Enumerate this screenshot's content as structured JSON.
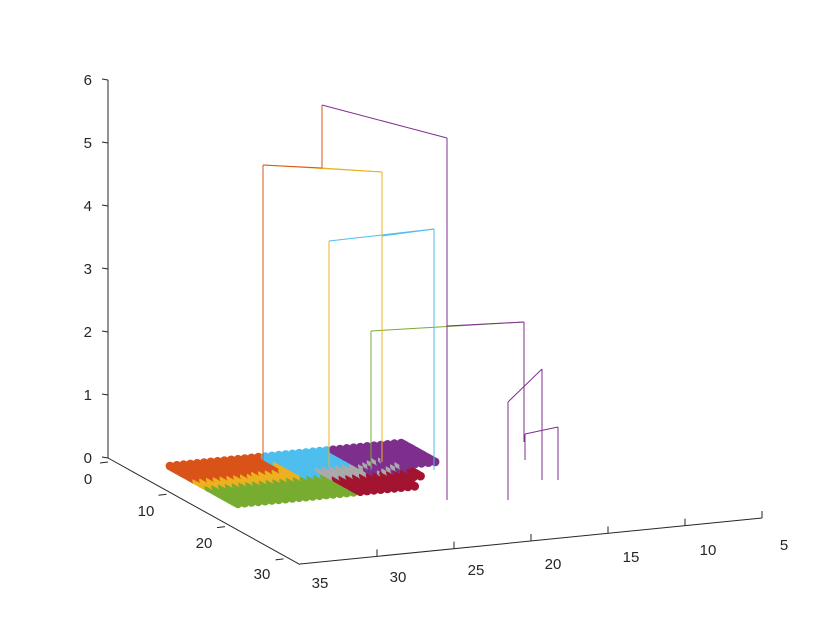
{
  "chart_data": {
    "type": "scatter",
    "title": "",
    "xlabel": "",
    "ylabel": "",
    "zlabel": "",
    "grid": false,
    "x_ticks": [
      "0",
      "10",
      "20",
      "30"
    ],
    "y_ticks": [
      "35",
      "30",
      "25",
      "20",
      "15",
      "10",
      "5"
    ],
    "z_ticks": [
      "0",
      "1",
      "2",
      "3",
      "4",
      "5",
      "6"
    ],
    "xlim": [
      0,
      32
    ],
    "ylim": [
      3,
      37
    ],
    "zlim": [
      0,
      6
    ],
    "clusters": [
      {
        "color": "#D95319",
        "x": [
          3,
          13
        ],
        "y": [
          26,
          36
        ]
      },
      {
        "color": "#EDB120",
        "x": [
          10,
          20
        ],
        "y": [
          26,
          33
        ]
      },
      {
        "color": "#77AC30",
        "x": [
          18,
          30
        ],
        "y": [
          24,
          36
        ]
      },
      {
        "color": "#4DBEEE",
        "x": [
          3,
          14
        ],
        "y": [
          18,
          27
        ]
      },
      {
        "color": "#7E2F8E",
        "x": [
          2,
          32
        ],
        "y": [
          4,
          20
        ]
      },
      {
        "color": "#A2142F",
        "x": [
          23,
          31
        ],
        "y": [
          11,
          24
        ]
      },
      {
        "color": "#AAAAAA",
        "x": [
          6,
          23
        ],
        "y": [
          10,
          22
        ]
      }
    ],
    "dendrogram": [
      {
        "color": "#7E2F8E",
        "x": 24.5,
        "y": 8.5,
        "z_bottom": 0.6,
        "z_top": 1.2
      },
      {
        "color": "#7E2F8E",
        "x": 22.0,
        "y": 10.5,
        "z_bottom": 0.8,
        "z_top": 1.4
      },
      {
        "color": "#7E2F8E",
        "x": 23.5,
        "y": 11.5,
        "z_bottom": 0,
        "z_top": 1.2
      },
      {
        "color": "#7E2F8E",
        "x": 21.0,
        "y": 13.5,
        "z_bottom": 1.4,
        "z_top": 2.2
      },
      {
        "color": "#77AC30",
        "x": 23.0,
        "y": 24.0,
        "z_bottom": 0,
        "z_top": 2.2
      },
      {
        "color": "#4DBEEE",
        "x": 13.0,
        "y": 22.5,
        "z_bottom": 0,
        "z_top": 3.7
      },
      {
        "color": "#EDB120",
        "x": 18.0,
        "y": 28.0,
        "z_bottom": 0,
        "z_top": 3.7
      },
      {
        "color": "#EDB120",
        "x": 13.0,
        "y": 25.0,
        "z_bottom": 3.7,
        "z_top": 4.6
      },
      {
        "color": "#D95319",
        "x": 15.0,
        "y": 32.0,
        "z_bottom": 0,
        "z_top": 4.7
      },
      {
        "color": "#7E2F8E",
        "x": 5.0,
        "y": 17.0,
        "z_bottom": 2.2,
        "z_top": 5.1
      },
      {
        "color": "#D95319",
        "x": 7.0,
        "y": 27.5,
        "z_bottom": 4.6,
        "z_top": 5.6
      }
    ]
  }
}
